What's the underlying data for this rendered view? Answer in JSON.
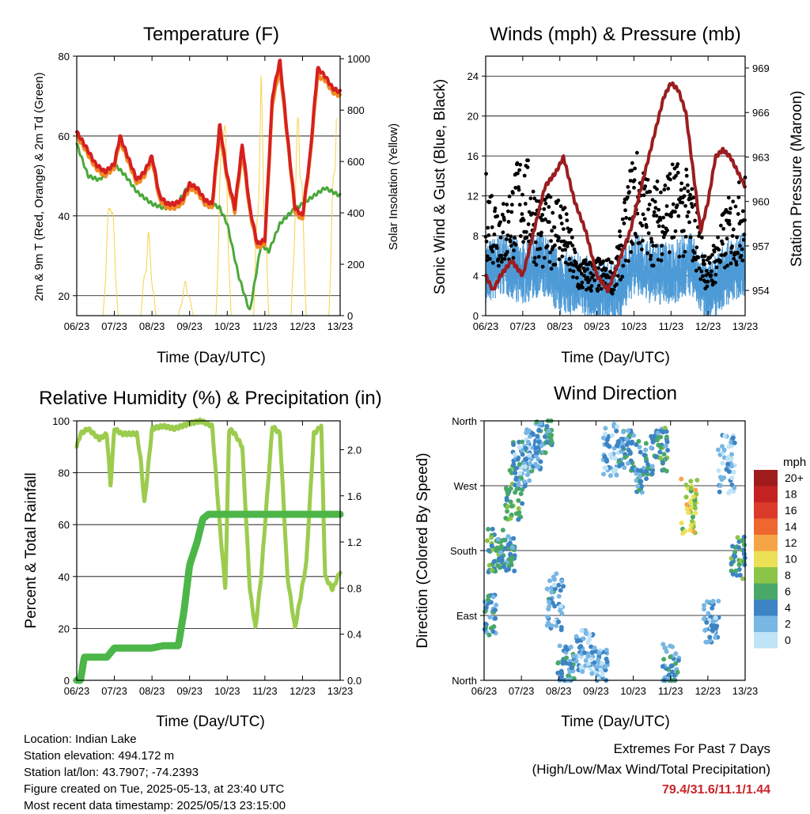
{
  "x_ticks": [
    "06/23",
    "07/23",
    "08/23",
    "09/23",
    "10/23",
    "11/23",
    "12/23",
    "13/23"
  ],
  "chart_data": [
    {
      "type": "line",
      "title": "Temperature (F)",
      "xlabel": "Time (Day/UTC)",
      "ylabel": "2m & 9m T (Red, Orange) & 2m Td (Green)",
      "y2label": "Solar Insolation (Yellow)",
      "ylim": [
        15,
        80
      ],
      "yticks": [
        20,
        40,
        60,
        80
      ],
      "y2lim": [
        0,
        1010
      ],
      "y2ticks": [
        0,
        200,
        400,
        600,
        800,
        1000
      ],
      "grid": true,
      "colors": {
        "temp_2m": "#d62020",
        "temp_9m": "#f08a24",
        "dewpoint": "#4aa83a",
        "solar": "#f5d24a"
      },
      "series": [
        {
          "key": "temp_2m",
          "x": [
            0,
            0.2,
            0.5,
            0.75,
            1,
            1.15,
            1.35,
            1.6,
            1.8,
            2,
            2.2,
            2.4,
            2.6,
            2.8,
            3,
            3.2,
            3.4,
            3.6,
            3.8,
            4,
            4.2,
            4.4,
            4.6,
            4.8,
            5,
            5.2,
            5.4,
            5.6,
            5.8,
            6,
            6.2,
            6.4,
            6.6,
            6.8,
            7
          ],
          "values": [
            61,
            58,
            53,
            51,
            53,
            60,
            55,
            49,
            51,
            55,
            45,
            43,
            43,
            44,
            48,
            47,
            44,
            43,
            63,
            50,
            42,
            58,
            42,
            33,
            34,
            70,
            79,
            60,
            42,
            40,
            55,
            77,
            75,
            72,
            71
          ]
        },
        {
          "key": "temp_9m",
          "x": [
            0,
            0.2,
            0.5,
            0.75,
            1,
            1.15,
            1.35,
            1.6,
            1.8,
            2,
            2.2,
            2.4,
            2.6,
            2.8,
            3,
            3.2,
            3.4,
            3.6,
            3.8,
            4,
            4.2,
            4.4,
            4.6,
            4.8,
            5,
            5.2,
            5.4,
            5.6,
            5.8,
            6,
            6.2,
            6.4,
            6.6,
            6.8,
            7
          ],
          "values": [
            60,
            57,
            52,
            50,
            52,
            59,
            54,
            48,
            50,
            54,
            44,
            42,
            42,
            43,
            47,
            46,
            43,
            42,
            61,
            49,
            41,
            56,
            41,
            32,
            33,
            68,
            77,
            59,
            41,
            39,
            54,
            75,
            74,
            71,
            70
          ]
        },
        {
          "key": "dewpoint",
          "x": [
            0,
            0.3,
            0.6,
            1,
            1.3,
            1.6,
            2,
            2.3,
            2.6,
            3,
            3.4,
            3.8,
            4,
            4.3,
            4.6,
            4.9,
            5.1,
            5.4,
            5.7,
            6,
            6.3,
            6.6,
            7
          ],
          "values": [
            58,
            50,
            49,
            53,
            50,
            46,
            43,
            42,
            42,
            48,
            44,
            42,
            38,
            25,
            16,
            33,
            31,
            38,
            41,
            43,
            45,
            47,
            45
          ]
        }
      ],
      "solar": {
        "x": [
          0,
          0.25,
          0.5,
          0.7,
          0.9,
          1.1,
          1.3,
          1.5,
          1.7,
          1.9,
          2.1,
          2.3,
          2.5,
          2.7,
          2.9,
          3.1,
          3.3,
          3.5,
          3.7,
          3.9,
          4.1,
          4.3,
          4.5,
          4.7,
          4.9,
          5.1,
          5.3,
          5.5,
          5.7,
          5.9,
          6.1,
          6.3,
          6.5,
          6.7,
          6.9
        ],
        "values": [
          0,
          0,
          0,
          0,
          600,
          0,
          0,
          0,
          0,
          350,
          0,
          0,
          0,
          0,
          150,
          0,
          0,
          0,
          0,
          1000,
          0,
          0,
          0,
          0,
          950,
          0,
          0,
          0,
          0,
          940,
          0,
          0,
          0,
          0,
          980
        ]
      }
    },
    {
      "type": "line",
      "title": "Winds (mph) & Pressure (mb)",
      "xlabel": "Time (Day/UTC)",
      "ylabel": "Sonic Wind & Gust (Blue, Black)",
      "y2label": "Station Pressure (Maroon)",
      "ylim": [
        0,
        26
      ],
      "yticks": [
        0,
        4,
        8,
        12,
        16,
        20,
        24
      ],
      "y2lim": [
        952.3,
        969.8
      ],
      "y2ticks": [
        954,
        957,
        960,
        963,
        966,
        969
      ],
      "grid": true,
      "colors": {
        "wind": "#4d9ad6",
        "gust": "#000000",
        "pressure": "#9b1d20"
      },
      "series": [
        {
          "key": "wind",
          "x": [
            0,
            0.5,
            1,
            1.5,
            2,
            2.5,
            3,
            3.5,
            4,
            4.5,
            5,
            5.5,
            6,
            6.5,
            7
          ],
          "values": [
            4,
            5,
            4,
            5,
            3,
            3,
            2,
            2,
            5,
            4,
            4,
            5,
            2,
            4,
            5
          ]
        },
        {
          "key": "gust",
          "x": [
            0,
            0.5,
            1,
            1.5,
            2,
            2.5,
            3,
            3.5,
            4,
            4.5,
            5,
            5.5,
            6,
            6.5,
            7
          ],
          "values": [
            10,
            8,
            12,
            8,
            9,
            4,
            4,
            4,
            12,
            9,
            11,
            10,
            4,
            8,
            10
          ]
        },
        {
          "key": "pressure",
          "x": [
            0,
            0.2,
            0.4,
            0.7,
            1,
            1.3,
            1.6,
            1.9,
            2.1,
            2.4,
            2.7,
            3.0,
            3.3,
            3.6,
            3.9,
            4.2,
            4.5,
            4.8,
            5.0,
            5.2,
            5.4,
            5.6,
            5.8,
            6.0,
            6.2,
            6.4,
            6.6,
            6.8,
            7
          ],
          "values": [
            955,
            954,
            955,
            956,
            955,
            958,
            961,
            962,
            963,
            960,
            958,
            955,
            954,
            956,
            958,
            961,
            964,
            967,
            968,
            967.5,
            966,
            962,
            958,
            960,
            963,
            963.5,
            963,
            962,
            961
          ]
        }
      ]
    },
    {
      "type": "line",
      "title": "Relative Humidity (%) & Precipitation (in)",
      "xlabel": "Time (Day/UTC)",
      "ylabel": "Percent & Total Rainfall",
      "ylim": [
        0,
        100
      ],
      "yticks": [
        0,
        20,
        40,
        60,
        80,
        100
      ],
      "y2lim": [
        0,
        2.25
      ],
      "y2ticks": [
        "0.0",
        "0.4",
        "0.8",
        "1.2",
        "1.6",
        "2.0"
      ],
      "grid": true,
      "colors": {
        "humidity": "#9ccc4e",
        "precip": "#4cb648"
      },
      "series": [
        {
          "key": "humidity",
          "x": [
            0,
            0.1,
            0.3,
            0.6,
            0.8,
            0.9,
            1,
            1.2,
            1.6,
            1.7,
            1.8,
            2,
            2.3,
            2.6,
            3,
            3.3,
            3.6,
            3.8,
            3.95,
            4.05,
            4.2,
            4.4,
            4.6,
            4.75,
            4.9,
            5.2,
            5.4,
            5.6,
            5.8,
            6.1,
            6.3,
            6.5,
            6.6,
            6.8,
            7
          ],
          "values": [
            90,
            95,
            97,
            93,
            95,
            75,
            97,
            95,
            95,
            85,
            68,
            97,
            98,
            97,
            99,
            100,
            98,
            60,
            35,
            97,
            95,
            90,
            35,
            20,
            40,
            98,
            95,
            40,
            20,
            45,
            95,
            98,
            40,
            35,
            42
          ]
        },
        {
          "key": "precip",
          "x": [
            0,
            0.1,
            0.2,
            0.5,
            0.8,
            1,
            2,
            2.3,
            2.7,
            2.85,
            3,
            3.2,
            3.35,
            3.5,
            7
          ],
          "values": [
            0,
            0,
            0.2,
            0.2,
            0.2,
            0.28,
            0.28,
            0.3,
            0.3,
            0.6,
            1.0,
            1.2,
            1.4,
            1.44,
            1.44
          ]
        }
      ]
    },
    {
      "type": "scatter",
      "title": "Wind Direction",
      "xlabel": "Time (Day/UTC)",
      "ylabel": "Direction (Colored By Speed)",
      "ylim": [
        0,
        360
      ],
      "ytick_labels": [
        "North",
        "East",
        "South",
        "West",
        "North"
      ],
      "grid": true,
      "legend": {
        "title": "mph",
        "labels": [
          "20+",
          "18",
          "16",
          "14",
          "12",
          "10",
          "8",
          "6",
          "4",
          "2",
          "0"
        ],
        "colors": [
          "#a01c1c",
          "#c42222",
          "#dc3a2a",
          "#ee6630",
          "#f6a546",
          "#ece056",
          "#8cc44a",
          "#48a868",
          "#3c84c4",
          "#78b6e4",
          "#bfe3f7"
        ]
      },
      "clusters": [
        {
          "x": 0.1,
          "dir": 90,
          "spread": 30,
          "speed": 4
        },
        {
          "x": 0.3,
          "dir": 180,
          "spread": 30,
          "speed": 6
        },
        {
          "x": 0.6,
          "dir": 175,
          "spread": 25,
          "speed": 4
        },
        {
          "x": 0.8,
          "dir": 260,
          "spread": 40,
          "speed": 6
        },
        {
          "x": 1.0,
          "dir": 300,
          "spread": 35,
          "speed": 3
        },
        {
          "x": 1.3,
          "dir": 320,
          "spread": 30,
          "speed": 3
        },
        {
          "x": 1.6,
          "dir": 340,
          "spread": 25,
          "speed": 4
        },
        {
          "x": 1.9,
          "dir": 110,
          "spread": 40,
          "speed": 3
        },
        {
          "x": 2.2,
          "dir": 20,
          "spread": 30,
          "speed": 4
        },
        {
          "x": 2.7,
          "dir": 40,
          "spread": 30,
          "speed": 2
        },
        {
          "x": 3.1,
          "dir": 20,
          "spread": 25,
          "speed": 2
        },
        {
          "x": 3.4,
          "dir": 320,
          "spread": 40,
          "speed": 2
        },
        {
          "x": 3.8,
          "dir": 320,
          "spread": 30,
          "speed": 4
        },
        {
          "x": 4.3,
          "dir": 300,
          "spread": 40,
          "speed": 4
        },
        {
          "x": 4.7,
          "dir": 320,
          "spread": 30,
          "speed": 5
        },
        {
          "x": 5.0,
          "dir": 20,
          "spread": 30,
          "speed": 4
        },
        {
          "x": 5.5,
          "dir": 240,
          "spread": 40,
          "speed": 9
        },
        {
          "x": 6.1,
          "dir": 80,
          "spread": 30,
          "speed": 3
        },
        {
          "x": 6.5,
          "dir": 300,
          "spread": 40,
          "speed": 2
        },
        {
          "x": 6.85,
          "dir": 170,
          "spread": 30,
          "speed": 6
        }
      ]
    }
  ],
  "info": {
    "location": "Location: Indian Lake",
    "elevation": "Station elevation: 494.172 m",
    "latlon": "Station lat/lon: 43.7907; -74.2393",
    "created": "Figure created on Tue, 2025-05-13, at 23:40 UTC",
    "recent": "Most recent data timestamp: 2025/05/13 23:15:00"
  },
  "extremes": {
    "title": "Extremes For Past 7 Days",
    "subtitle": "(High/Low/Max Wind/Total Precipitation)",
    "values": "79.4/31.6/11.1/1.44"
  }
}
